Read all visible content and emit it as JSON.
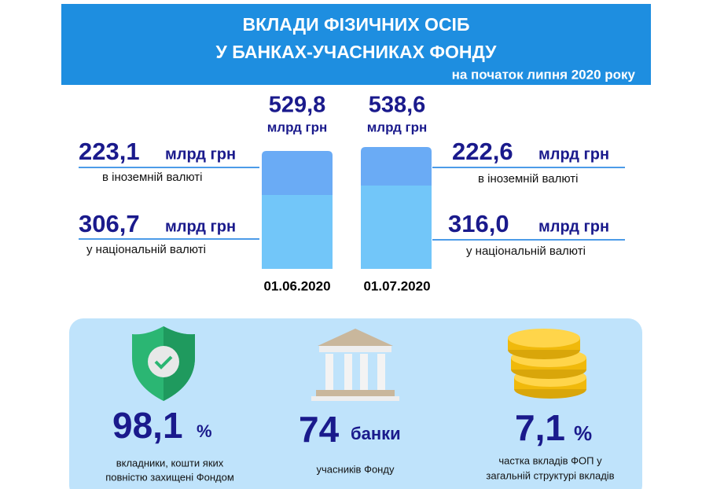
{
  "header": {
    "title": [
      "ВКЛАДИ ФІЗИЧНИХ ОСІБ",
      "У БАНКАХ-УЧАСНИКАХ ФОНДУ"
    ],
    "subtitle": "на початок липня 2020 року"
  },
  "periods": [
    {
      "date": "01.06.2020",
      "total": "529,8",
      "total_unit": "млрд грн",
      "foreign": {
        "value": "223,1",
        "unit": "млрд грн",
        "label": "в іноземній валюті"
      },
      "national": {
        "value": "306,7",
        "unit": "млрд грн",
        "label": "у національній валюті"
      }
    },
    {
      "date": "01.07.2020",
      "total": "538,6",
      "total_unit": "млрд грн",
      "foreign": {
        "value": "222,6",
        "unit": "млрд грн",
        "label": "в іноземній валюті"
      },
      "national": {
        "value": "316,0",
        "unit": "млрд грн",
        "label": "у національній валюті"
      }
    }
  ],
  "stats": [
    {
      "value": "98,1",
      "unit": "%",
      "caption": [
        "вкладники, кошти яких",
        "повністю захищені Фондом"
      ]
    },
    {
      "value": "74",
      "unit": "банки",
      "caption": [
        "учасників Фонду"
      ]
    },
    {
      "value": "7,1",
      "unit": "%",
      "caption": [
        "частка вкладів ФОП у",
        "загальній структурі вкладів"
      ]
    }
  ]
}
